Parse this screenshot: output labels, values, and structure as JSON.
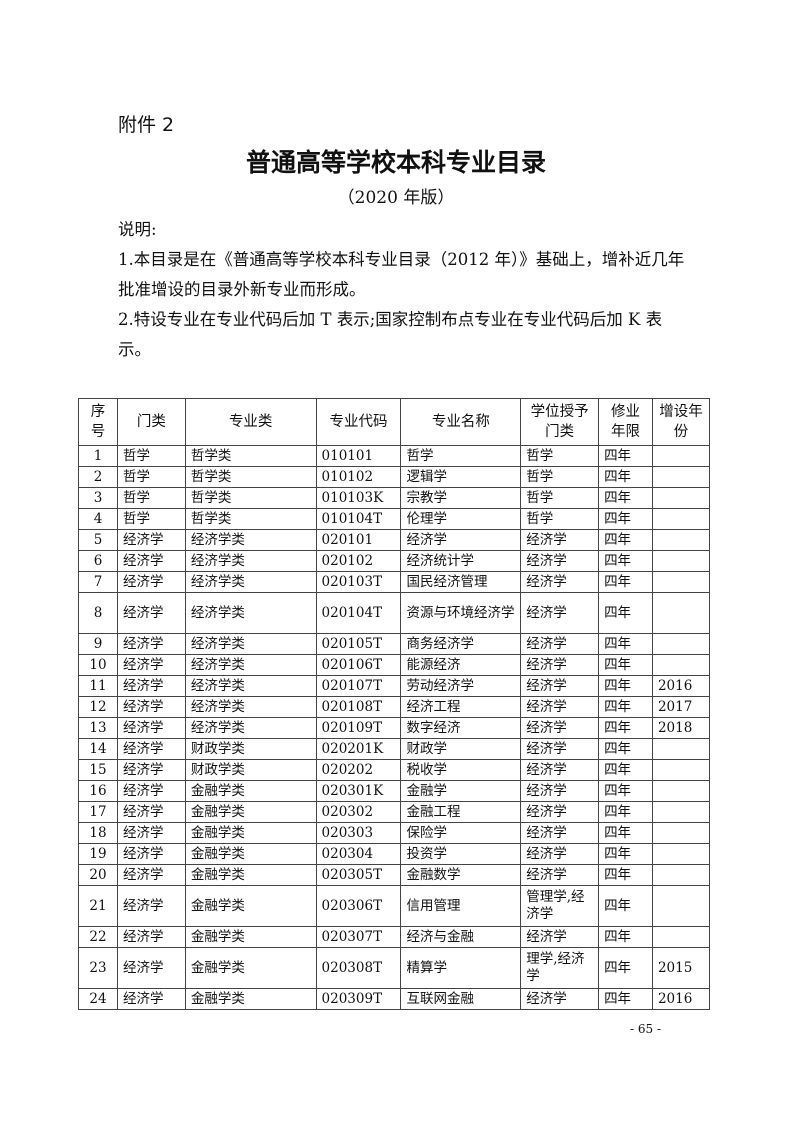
{
  "attachment": "附件 2",
  "title": "普通高等学校本科专业目录",
  "subtitle": "（2020 年版）",
  "notes": [
    "说明:",
    "1.本目录是在《普通高等学校本科专业目录（2012 年）》基础上，增补近几年批准增设的目录外新专业而形成。",
    "2.特设专业在专业代码后加 T 表示;国家控制布点专业在专业代码后加 K 表示。"
  ],
  "table": {
    "headers": [
      "序号",
      "门类",
      "专业类",
      "专业代码",
      "专业名称",
      "学位授予门类",
      "修业年限",
      "增设年份"
    ],
    "rows": [
      [
        "1",
        "哲学",
        "哲学类",
        "010101",
        "哲学",
        "哲学",
        "四年",
        ""
      ],
      [
        "2",
        "哲学",
        "哲学类",
        "010102",
        "逻辑学",
        "哲学",
        "四年",
        ""
      ],
      [
        "3",
        "哲学",
        "哲学类",
        "010103K",
        "宗教学",
        "哲学",
        "四年",
        ""
      ],
      [
        "4",
        "哲学",
        "哲学类",
        "010104T",
        "伦理学",
        "哲学",
        "四年",
        ""
      ],
      [
        "5",
        "经济学",
        "经济学类",
        "020101",
        "经济学",
        "经济学",
        "四年",
        ""
      ],
      [
        "6",
        "经济学",
        "经济学类",
        "020102",
        "经济统计学",
        "经济学",
        "四年",
        ""
      ],
      [
        "7",
        "经济学",
        "经济学类",
        "020103T",
        "国民经济管理",
        "经济学",
        "四年",
        ""
      ],
      [
        "8",
        "经济学",
        "经济学类",
        "020104T",
        "资源与环境经济学",
        "经济学",
        "四年",
        ""
      ],
      [
        "9",
        "经济学",
        "经济学类",
        "020105T",
        "商务经济学",
        "经济学",
        "四年",
        ""
      ],
      [
        "10",
        "经济学",
        "经济学类",
        "020106T",
        "能源经济",
        "经济学",
        "四年",
        ""
      ],
      [
        "11",
        "经济学",
        "经济学类",
        "020107T",
        "劳动经济学",
        "经济学",
        "四年",
        "2016"
      ],
      [
        "12",
        "经济学",
        "经济学类",
        "020108T",
        "经济工程",
        "经济学",
        "四年",
        "2017"
      ],
      [
        "13",
        "经济学",
        "经济学类",
        "020109T",
        "数字经济",
        "经济学",
        "四年",
        "2018"
      ],
      [
        "14",
        "经济学",
        "财政学类",
        "020201K",
        "财政学",
        "经济学",
        "四年",
        ""
      ],
      [
        "15",
        "经济学",
        "财政学类",
        "020202",
        "税收学",
        "经济学",
        "四年",
        ""
      ],
      [
        "16",
        "经济学",
        "金融学类",
        "020301K",
        "金融学",
        "经济学",
        "四年",
        ""
      ],
      [
        "17",
        "经济学",
        "金融学类",
        "020302",
        "金融工程",
        "经济学",
        "四年",
        ""
      ],
      [
        "18",
        "经济学",
        "金融学类",
        "020303",
        "保险学",
        "经济学",
        "四年",
        ""
      ],
      [
        "19",
        "经济学",
        "金融学类",
        "020304",
        "投资学",
        "经济学",
        "四年",
        ""
      ],
      [
        "20",
        "经济学",
        "金融学类",
        "020305T",
        "金融数学",
        "经济学",
        "四年",
        ""
      ],
      [
        "21",
        "经济学",
        "金融学类",
        "020306T",
        "信用管理",
        "管理学,经济学",
        "四年",
        ""
      ],
      [
        "22",
        "经济学",
        "金融学类",
        "020307T",
        "经济与金融",
        "经济学",
        "四年",
        ""
      ],
      [
        "23",
        "经济学",
        "金融学类",
        "020308T",
        "精算学",
        "理学,经济学",
        "四年",
        "2015"
      ],
      [
        "24",
        "经济学",
        "金融学类",
        "020309T",
        "互联网金融",
        "经济学",
        "四年",
        "2016"
      ]
    ]
  },
  "page_number": "- 65 -"
}
